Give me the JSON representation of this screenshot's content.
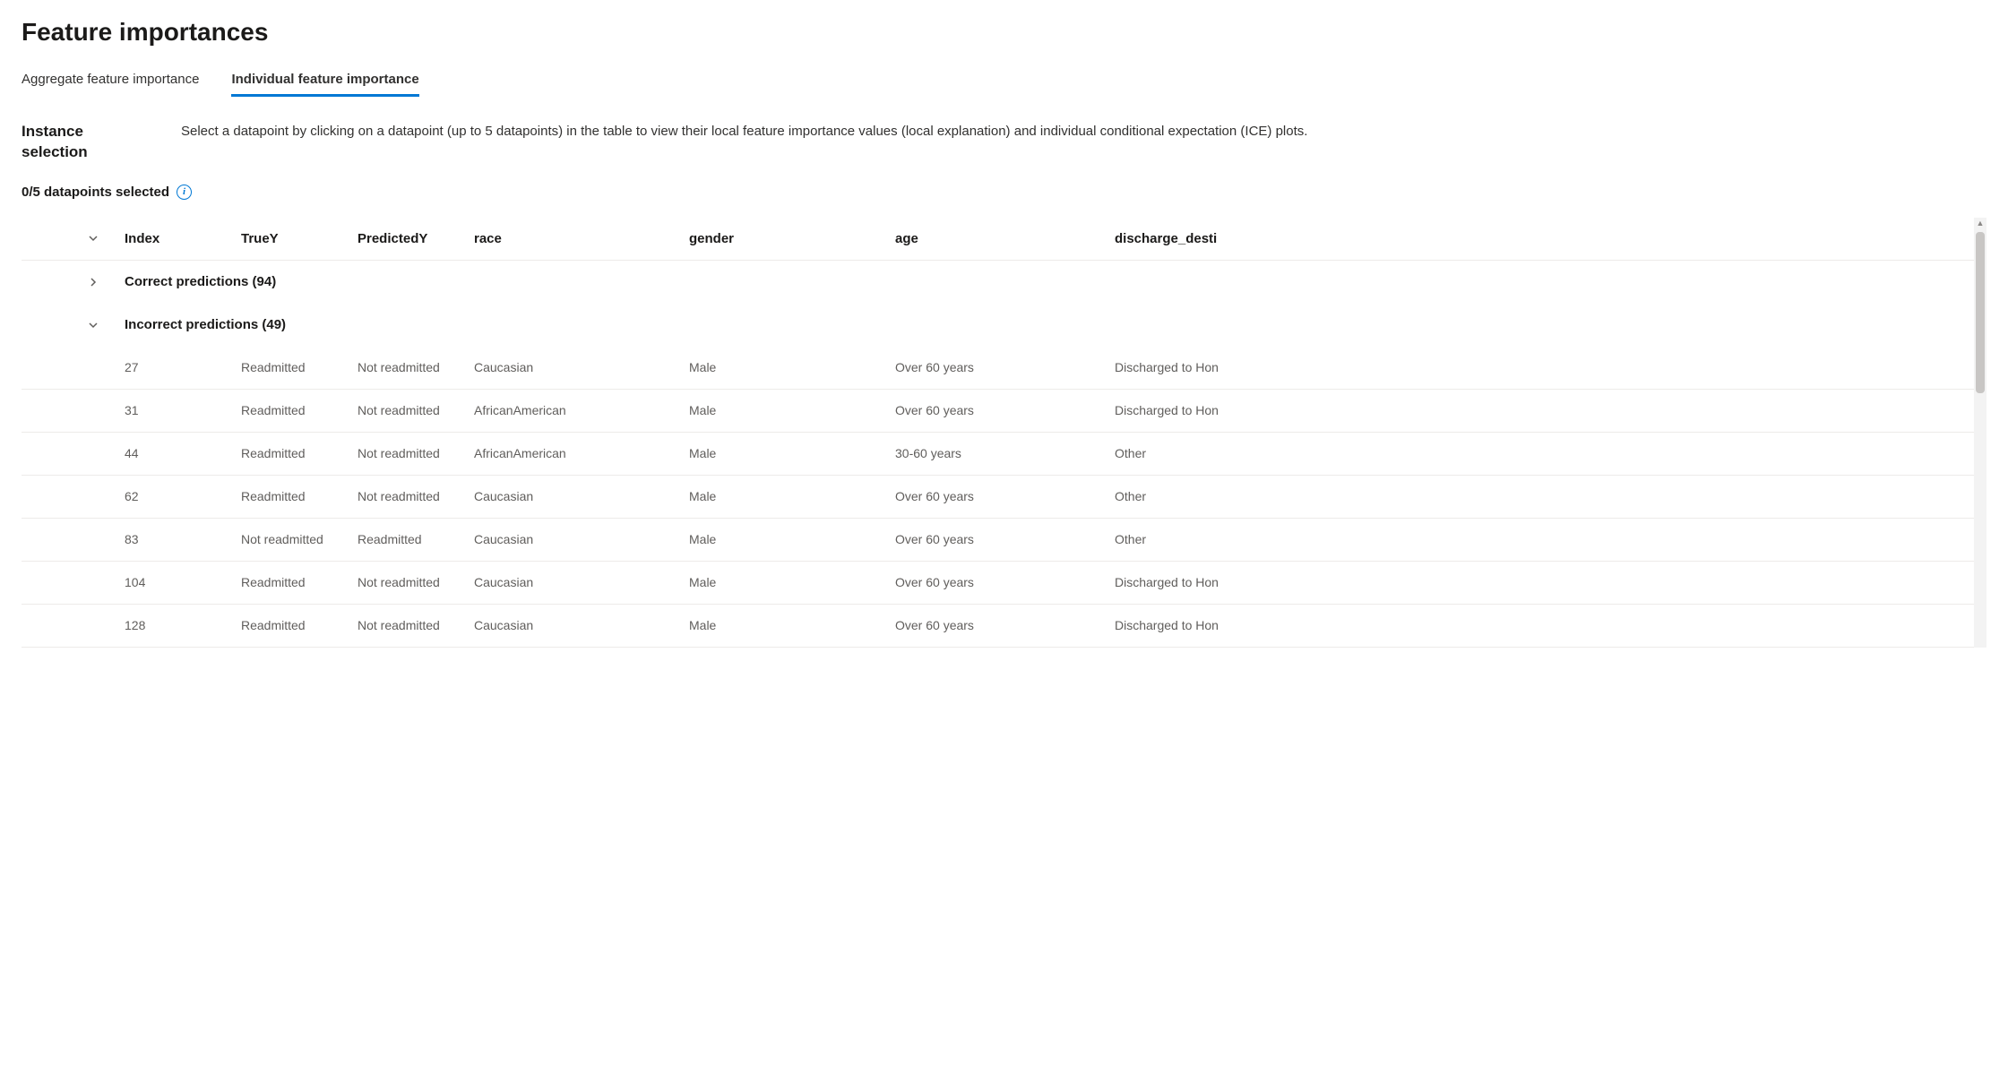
{
  "page_title": "Feature importances",
  "tabs": [
    {
      "label": "Aggregate feature importance",
      "active": false
    },
    {
      "label": "Individual feature importance",
      "active": true
    }
  ],
  "instance": {
    "label": "Instance selection",
    "description": "Select a datapoint by clicking on a datapoint (up to 5 datapoints) in the table to view their local feature importance values (local explanation) and individual conditional expectation (ICE) plots."
  },
  "selection_status": "0/5 datapoints selected",
  "table": {
    "columns": [
      "Index",
      "TrueY",
      "PredictedY",
      "race",
      "gender",
      "age",
      "discharge_desti"
    ],
    "groups": [
      {
        "label": "Correct predictions (94)",
        "expanded": false,
        "rows": []
      },
      {
        "label": "Incorrect predictions (49)",
        "expanded": true,
        "rows": [
          {
            "index": "27",
            "truey": "Readmitted",
            "predicted": "Not readmitted",
            "race": "Caucasian",
            "gender": "Male",
            "age": "Over 60 years",
            "discharge": "Discharged to Hon"
          },
          {
            "index": "31",
            "truey": "Readmitted",
            "predicted": "Not readmitted",
            "race": "AfricanAmerican",
            "gender": "Male",
            "age": "Over 60 years",
            "discharge": "Discharged to Hon"
          },
          {
            "index": "44",
            "truey": "Readmitted",
            "predicted": "Not readmitted",
            "race": "AfricanAmerican",
            "gender": "Male",
            "age": "30-60 years",
            "discharge": "Other"
          },
          {
            "index": "62",
            "truey": "Readmitted",
            "predicted": "Not readmitted",
            "race": "Caucasian",
            "gender": "Male",
            "age": "Over 60 years",
            "discharge": "Other"
          },
          {
            "index": "83",
            "truey": "Not readmitted",
            "predicted": "Readmitted",
            "race": "Caucasian",
            "gender": "Male",
            "age": "Over 60 years",
            "discharge": "Other"
          },
          {
            "index": "104",
            "truey": "Readmitted",
            "predicted": "Not readmitted",
            "race": "Caucasian",
            "gender": "Male",
            "age": "Over 60 years",
            "discharge": "Discharged to Hon"
          },
          {
            "index": "128",
            "truey": "Readmitted",
            "predicted": "Not readmitted",
            "race": "Caucasian",
            "gender": "Male",
            "age": "Over 60 years",
            "discharge": "Discharged to Hon"
          }
        ]
      }
    ]
  },
  "colors": {
    "text_primary": "#1b1a19",
    "text_secondary": "#605e5c",
    "accent": "#0078d4",
    "border": "#edebe9",
    "background": "#ffffff"
  }
}
